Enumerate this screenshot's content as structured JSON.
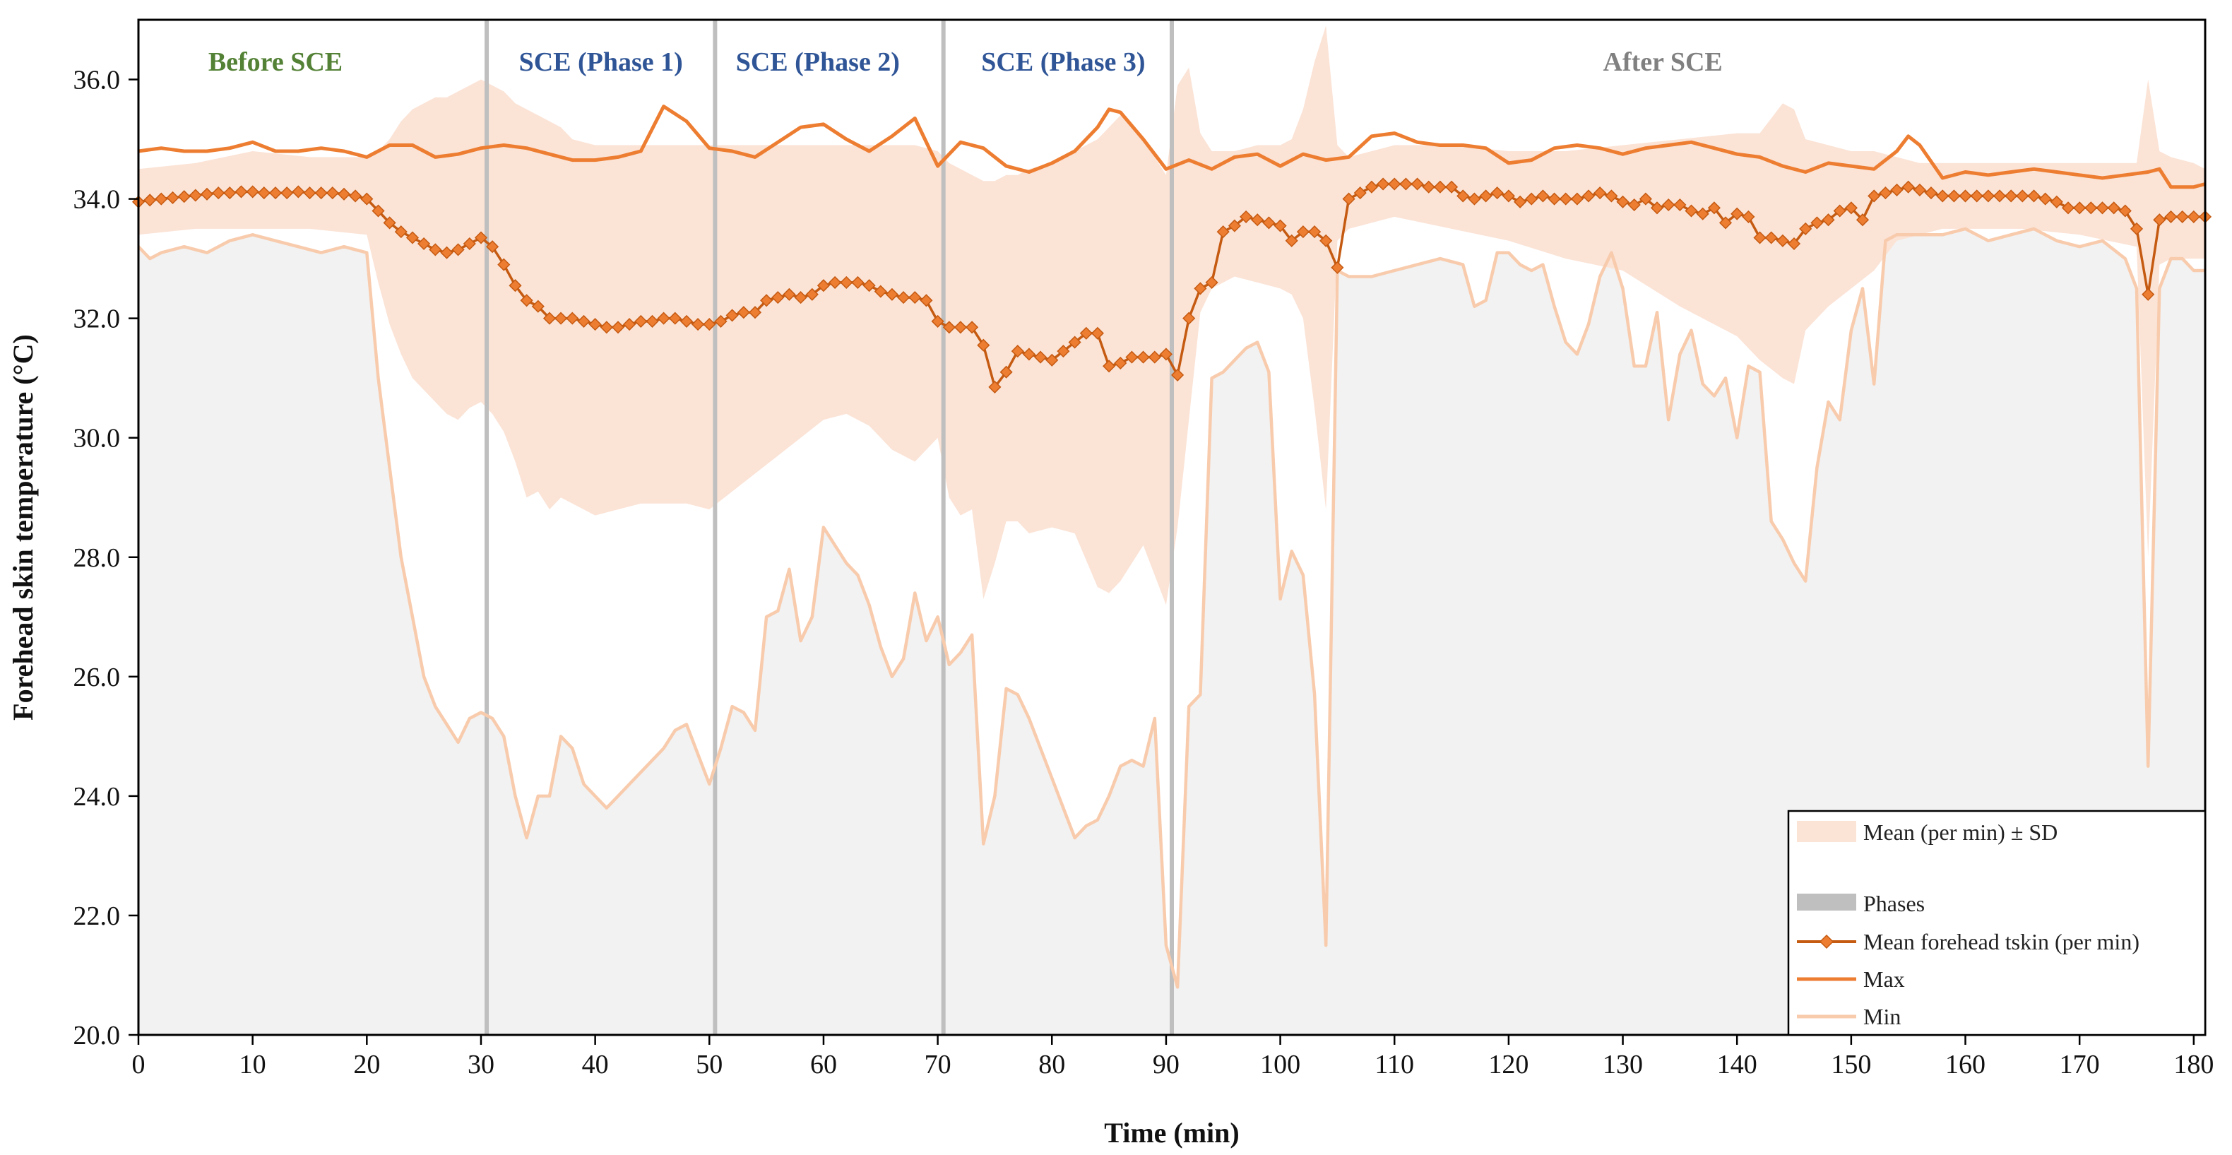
{
  "chart_data": {
    "type": "line",
    "xlabel": "Time (min)",
    "ylabel": "Forehead skin temperature (°C)",
    "xlim": [
      0,
      181
    ],
    "ylim": [
      20.0,
      37.0
    ],
    "x_ticks": [
      0,
      10,
      20,
      30,
      40,
      50,
      60,
      70,
      80,
      90,
      100,
      110,
      120,
      130,
      140,
      150,
      160,
      170,
      180
    ],
    "y_ticks": [
      "20.0",
      "22.0",
      "24.0",
      "26.0",
      "28.0",
      "30.0",
      "32.0",
      "34.0",
      "36.0"
    ],
    "phase_lines": [
      30.5,
      50.5,
      70.5,
      90.5
    ],
    "phase_labels": [
      {
        "text": "Before SCE",
        "x": 12,
        "color": "#538135"
      },
      {
        "text": "SCE (Phase 1)",
        "x": 40.5,
        "color": "#2F5597"
      },
      {
        "text": "SCE (Phase 2)",
        "x": 59.5,
        "color": "#2F5597"
      },
      {
        "text": "SCE (Phase 3)",
        "x": 81,
        "color": "#2F5597"
      },
      {
        "text": "After SCE",
        "x": 133.5,
        "color": "#808080"
      }
    ],
    "legend": {
      "placement": "bottom-right",
      "entries": [
        "Mean (per min) ± SD",
        "Phases",
        "Mean forehead tskin (per min)",
        "Max",
        "Min"
      ]
    },
    "colors": {
      "sd_band": "#FBE3D6",
      "min_area": "#F2F2F2",
      "phases": "#BFBFBF",
      "mean": "#C55A11",
      "max": "#ED7D31",
      "min": "#F8CBAD"
    },
    "series": [
      {
        "name": "Mean forehead tskin (per min)",
        "x": [
          0,
          1,
          2,
          3,
          4,
          5,
          6,
          7,
          8,
          9,
          10,
          11,
          12,
          13,
          14,
          15,
          16,
          17,
          18,
          19,
          20,
          21,
          22,
          23,
          24,
          25,
          26,
          27,
          28,
          29,
          30,
          31,
          32,
          33,
          34,
          35,
          36,
          37,
          38,
          39,
          40,
          41,
          42,
          43,
          44,
          45,
          46,
          47,
          48,
          49,
          50,
          51,
          52,
          53,
          54,
          55,
          56,
          57,
          58,
          59,
          60,
          61,
          62,
          63,
          64,
          65,
          66,
          67,
          68,
          69,
          70,
          71,
          72,
          73,
          74,
          75,
          76,
          77,
          78,
          79,
          80,
          81,
          82,
          83,
          84,
          85,
          86,
          87,
          88,
          89,
          90,
          91,
          92,
          93,
          94,
          95,
          96,
          97,
          98,
          99,
          100,
          101,
          102,
          103,
          104,
          105,
          106,
          107,
          108,
          109,
          110,
          111,
          112,
          113,
          114,
          115,
          116,
          117,
          118,
          119,
          120,
          121,
          122,
          123,
          124,
          125,
          126,
          127,
          128,
          129,
          130,
          131,
          132,
          133,
          134,
          135,
          136,
          137,
          138,
          139,
          140,
          141,
          142,
          143,
          144,
          145,
          146,
          147,
          148,
          149,
          150,
          151,
          152,
          153,
          154,
          155,
          156,
          157,
          158,
          159,
          160,
          161,
          162,
          163,
          164,
          165,
          166,
          167,
          168,
          169,
          170,
          171,
          172,
          173,
          174,
          175,
          176,
          177,
          178,
          179,
          180,
          181
        ],
        "values": [
          33.95,
          33.98,
          34.0,
          34.02,
          34.04,
          34.06,
          34.08,
          34.1,
          34.1,
          34.12,
          34.12,
          34.1,
          34.1,
          34.1,
          34.12,
          34.1,
          34.1,
          34.1,
          34.08,
          34.05,
          34.0,
          33.8,
          33.6,
          33.45,
          33.35,
          33.25,
          33.15,
          33.1,
          33.15,
          33.25,
          33.35,
          33.2,
          32.9,
          32.55,
          32.3,
          32.2,
          32.0,
          32.0,
          32.0,
          31.95,
          31.9,
          31.85,
          31.85,
          31.9,
          31.95,
          31.95,
          32.0,
          32.0,
          31.95,
          31.9,
          31.9,
          31.95,
          32.05,
          32.1,
          32.1,
          32.3,
          32.35,
          32.4,
          32.35,
          32.4,
          32.55,
          32.6,
          32.6,
          32.6,
          32.55,
          32.45,
          32.4,
          32.35,
          32.35,
          32.3,
          31.95,
          31.85,
          31.85,
          31.85,
          31.55,
          30.85,
          31.1,
          31.45,
          31.4,
          31.35,
          31.3,
          31.45,
          31.6,
          31.75,
          31.75,
          31.2,
          31.25,
          31.35,
          31.35,
          31.35,
          31.4,
          31.05,
          32.0,
          32.5,
          32.6,
          33.45,
          33.55,
          33.7,
          33.65,
          33.6,
          33.55,
          33.3,
          33.45,
          33.45,
          33.3,
          32.85,
          34.0,
          34.1,
          34.2,
          34.25,
          34.25,
          34.25,
          34.25,
          34.2,
          34.2,
          34.2,
          34.05,
          34.0,
          34.05,
          34.1,
          34.05,
          33.95,
          34.0,
          34.05,
          34.0,
          34.0,
          34.0,
          34.05,
          34.1,
          34.05,
          33.95,
          33.9,
          34.0,
          33.85,
          33.9,
          33.9,
          33.8,
          33.75,
          33.85,
          33.6,
          33.75,
          33.7,
          33.35,
          33.35,
          33.3,
          33.25,
          33.5,
          33.6,
          33.65,
          33.8,
          33.85,
          33.65,
          34.05,
          34.1,
          34.15,
          34.2,
          34.15,
          34.1,
          34.05,
          34.05,
          34.05,
          34.05,
          34.05,
          34.05,
          34.05,
          34.05,
          34.05,
          34.0,
          33.95,
          33.85,
          33.85,
          33.85,
          33.85,
          33.85,
          33.8,
          33.5,
          32.4,
          33.65,
          33.7,
          33.7,
          33.7,
          33.7
        ]
      },
      {
        "name": "Max",
        "x": [
          0,
          2,
          4,
          6,
          8,
          10,
          12,
          14,
          16,
          18,
          20,
          22,
          24,
          26,
          28,
          30,
          32,
          34,
          36,
          38,
          40,
          42,
          44,
          46,
          48,
          50,
          52,
          54,
          56,
          58,
          60,
          62,
          64,
          66,
          68,
          70,
          72,
          74,
          76,
          78,
          80,
          82,
          84,
          85,
          86,
          88,
          90,
          92,
          94,
          96,
          98,
          100,
          102,
          104,
          106,
          108,
          110,
          112,
          114,
          116,
          118,
          120,
          122,
          124,
          126,
          128,
          130,
          132,
          134,
          136,
          138,
          140,
          142,
          144,
          146,
          148,
          150,
          152,
          154,
          155,
          156,
          158,
          160,
          162,
          164,
          166,
          168,
          170,
          172,
          174,
          176,
          177,
          178,
          180,
          181
        ],
        "values": [
          34.8,
          34.85,
          34.8,
          34.8,
          34.85,
          34.95,
          34.8,
          34.8,
          34.85,
          34.8,
          34.7,
          34.9,
          34.9,
          34.7,
          34.75,
          34.85,
          34.9,
          34.85,
          34.75,
          34.65,
          34.65,
          34.7,
          34.8,
          35.55,
          35.3,
          34.85,
          34.8,
          34.7,
          34.95,
          35.2,
          35.25,
          35.0,
          34.8,
          35.05,
          35.35,
          34.55,
          34.95,
          34.85,
          34.55,
          34.45,
          34.6,
          34.8,
          35.2,
          35.5,
          35.45,
          35.0,
          34.5,
          34.65,
          34.5,
          34.7,
          34.75,
          34.55,
          34.75,
          34.65,
          34.7,
          35.05,
          35.1,
          34.95,
          34.9,
          34.9,
          34.85,
          34.6,
          34.65,
          34.85,
          34.9,
          34.85,
          34.75,
          34.85,
          34.9,
          34.95,
          34.85,
          34.75,
          34.7,
          34.55,
          34.45,
          34.6,
          34.55,
          34.5,
          34.8,
          35.05,
          34.9,
          34.35,
          34.45,
          34.4,
          34.45,
          34.5,
          34.45,
          34.4,
          34.35,
          34.4,
          34.45,
          34.5,
          34.2,
          34.2,
          34.25
        ]
      },
      {
        "name": "Min",
        "x": [
          0,
          1,
          2,
          4,
          6,
          8,
          10,
          12,
          14,
          16,
          18,
          20,
          21,
          22,
          23,
          24,
          25,
          26,
          27,
          28,
          29,
          30,
          31,
          32,
          33,
          34,
          35,
          36,
          37,
          38,
          39,
          40,
          41,
          42,
          43,
          44,
          45,
          46,
          47,
          48,
          49,
          50,
          51,
          52,
          53,
          54,
          55,
          56,
          57,
          58,
          59,
          60,
          61,
          62,
          63,
          64,
          65,
          66,
          67,
          68,
          69,
          70,
          71,
          72,
          73,
          74,
          75,
          76,
          77,
          78,
          79,
          80,
          81,
          82,
          83,
          84,
          85,
          86,
          87,
          88,
          89,
          90,
          91,
          92,
          93,
          94,
          95,
          96,
          97,
          98,
          99,
          100,
          101,
          102,
          103,
          104,
          105,
          106,
          108,
          110,
          112,
          114,
          116,
          117,
          118,
          119,
          120,
          121,
          122,
          123,
          124,
          125,
          126,
          127,
          128,
          129,
          130,
          131,
          132,
          133,
          134,
          135,
          136,
          137,
          138,
          139,
          140,
          141,
          142,
          143,
          144,
          145,
          146,
          147,
          148,
          149,
          150,
          151,
          152,
          153,
          154,
          156,
          158,
          160,
          162,
          164,
          166,
          168,
          170,
          172,
          174,
          175,
          176,
          177,
          178,
          179,
          180,
          181
        ],
        "values": [
          33.2,
          33.0,
          33.1,
          33.2,
          33.1,
          33.3,
          33.4,
          33.3,
          33.2,
          33.1,
          33.2,
          33.1,
          31.0,
          29.5,
          28.0,
          27.0,
          26.0,
          25.5,
          25.2,
          24.9,
          25.3,
          25.4,
          25.3,
          25.0,
          24.0,
          23.3,
          24.0,
          24.0,
          25.0,
          24.8,
          24.2,
          24.0,
          23.8,
          24.0,
          24.2,
          24.4,
          24.6,
          24.8,
          25.1,
          25.2,
          24.7,
          24.2,
          24.8,
          25.5,
          25.4,
          25.1,
          27.0,
          27.1,
          27.8,
          26.6,
          27.0,
          28.5,
          28.2,
          27.9,
          27.7,
          27.2,
          26.5,
          26.0,
          26.3,
          27.4,
          26.6,
          27.0,
          26.2,
          26.4,
          26.7,
          23.2,
          24.0,
          25.8,
          25.7,
          25.3,
          24.8,
          24.3,
          23.8,
          23.3,
          23.5,
          23.6,
          24.0,
          24.5,
          24.6,
          24.5,
          25.3,
          21.5,
          20.8,
          25.5,
          25.7,
          31.0,
          31.1,
          31.3,
          31.5,
          31.6,
          31.1,
          27.3,
          28.1,
          27.7,
          25.7,
          21.5,
          32.8,
          32.7,
          32.7,
          32.8,
          32.9,
          33.0,
          32.9,
          32.2,
          32.3,
          33.1,
          33.1,
          32.9,
          32.8,
          32.9,
          32.2,
          31.6,
          31.4,
          31.9,
          32.7,
          33.1,
          32.5,
          31.2,
          31.2,
          32.1,
          30.3,
          31.4,
          31.8,
          30.9,
          30.7,
          31.0,
          30.0,
          31.2,
          31.1,
          28.6,
          28.3,
          27.9,
          27.6,
          29.5,
          30.6,
          30.3,
          31.8,
          32.5,
          30.9,
          33.3,
          33.4,
          33.4,
          33.4,
          33.5,
          33.3,
          33.4,
          33.5,
          33.3,
          33.2,
          33.3,
          33.0,
          32.5,
          24.5,
          32.5,
          33.0,
          33.0,
          32.8,
          32.8
        ]
      },
      {
        "name": "Mean (per min) ± SD",
        "x": [
          0,
          5,
          10,
          15,
          20,
          21,
          22,
          23,
          24,
          25,
          26,
          27,
          28,
          29,
          30,
          31,
          32,
          33,
          34,
          35,
          36,
          37,
          38,
          40,
          42,
          44,
          46,
          48,
          50,
          52,
          54,
          56,
          58,
          60,
          62,
          64,
          66,
          68,
          70,
          71,
          72,
          73,
          74,
          75,
          76,
          77,
          78,
          80,
          82,
          84,
          85,
          86,
          88,
          90,
          91,
          92,
          93,
          94,
          96,
          98,
          100,
          101,
          102,
          103,
          104,
          105,
          106,
          108,
          110,
          115,
          120,
          125,
          130,
          135,
          140,
          142,
          144,
          145,
          146,
          148,
          150,
          152,
          154,
          156,
          158,
          160,
          165,
          170,
          175,
          176,
          177,
          178,
          180,
          181
        ],
        "upper": [
          34.5,
          34.6,
          34.8,
          34.7,
          34.7,
          34.8,
          35.0,
          35.3,
          35.5,
          35.6,
          35.7,
          35.7,
          35.8,
          35.9,
          36.0,
          35.9,
          35.8,
          35.6,
          35.5,
          35.4,
          35.3,
          35.2,
          35.0,
          34.9,
          34.9,
          34.9,
          34.9,
          34.9,
          34.9,
          34.9,
          34.9,
          34.9,
          34.9,
          34.9,
          34.9,
          34.9,
          34.9,
          34.9,
          34.8,
          34.6,
          34.5,
          34.4,
          34.3,
          34.3,
          34.4,
          34.4,
          34.5,
          34.6,
          34.8,
          35.0,
          35.2,
          35.4,
          35.0,
          34.4,
          35.9,
          36.2,
          35.1,
          34.8,
          34.8,
          34.9,
          34.9,
          35.0,
          35.5,
          36.3,
          36.9,
          34.9,
          34.7,
          34.8,
          34.9,
          34.9,
          34.8,
          34.8,
          34.9,
          35.0,
          35.1,
          35.1,
          35.6,
          35.5,
          35.0,
          34.9,
          34.8,
          34.8,
          34.7,
          34.6,
          34.6,
          34.6,
          34.6,
          34.6,
          34.6,
          36.0,
          34.8,
          34.7,
          34.6,
          34.5
        ],
        "lower": [
          33.4,
          33.5,
          33.5,
          33.5,
          33.4,
          32.6,
          31.9,
          31.4,
          31.0,
          30.8,
          30.6,
          30.4,
          30.3,
          30.5,
          30.6,
          30.4,
          30.1,
          29.6,
          29.0,
          29.1,
          28.8,
          29.0,
          28.9,
          28.7,
          28.8,
          28.9,
          28.9,
          28.9,
          28.8,
          29.1,
          29.4,
          29.7,
          30.0,
          30.3,
          30.4,
          30.2,
          29.8,
          29.6,
          30.0,
          29.0,
          28.7,
          28.8,
          27.3,
          27.9,
          28.6,
          28.6,
          28.4,
          28.5,
          28.4,
          27.5,
          27.4,
          27.6,
          28.2,
          27.2,
          28.5,
          30.3,
          32.1,
          32.5,
          32.7,
          32.6,
          32.5,
          32.4,
          32.0,
          30.5,
          28.8,
          33.3,
          33.5,
          33.6,
          33.7,
          33.5,
          33.3,
          33.0,
          32.8,
          32.2,
          31.7,
          31.3,
          31.0,
          30.9,
          31.8,
          32.2,
          32.5,
          32.8,
          33.3,
          33.4,
          33.5,
          33.5,
          33.5,
          33.4,
          33.2,
          28.0,
          32.9,
          33.0,
          33.0,
          33.0
        ]
      }
    ]
  }
}
